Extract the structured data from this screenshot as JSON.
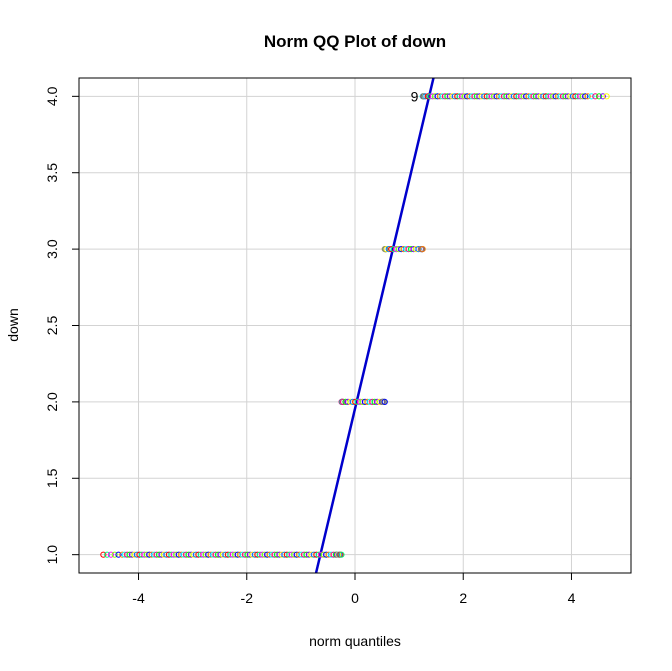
{
  "chart_data": {
    "type": "scatter",
    "title": "Norm QQ Plot of down",
    "xlabel": "norm quantiles",
    "ylabel": "down",
    "xlim": [
      -5.1,
      5.1
    ],
    "ylim": [
      0.88,
      4.12
    ],
    "x_ticks": [
      -4,
      -2,
      0,
      2,
      4
    ],
    "x_tick_labels": [
      "-4",
      "-2",
      "0",
      "2",
      "4"
    ],
    "y_ticks": [
      1.0,
      1.5,
      2.0,
      2.5,
      3.0,
      3.5,
      4.0
    ],
    "y_tick_labels": [
      "1.0",
      "1.5",
      "2.0",
      "2.5",
      "3.0",
      "3.5",
      "4.0"
    ],
    "grid": true,
    "point_color_palette": [
      "#ff0000",
      "#ff8000",
      "#ffff00",
      "#80ff00",
      "#00ff00",
      "#00ff80",
      "#00ffff",
      "#0080ff",
      "#0000ff",
      "#8000ff",
      "#ff00ff",
      "#ff0080"
    ],
    "series": [
      {
        "y": 1.0,
        "x_min": -4.65,
        "x_max": -0.25,
        "cluster_x_min": -4.3,
        "cluster_x_max": -0.35
      },
      {
        "y": 2.0,
        "x_min": -0.25,
        "x_max": 0.55,
        "cluster_x_min": -0.22,
        "cluster_x_max": 0.5
      },
      {
        "y": 3.0,
        "x_min": 0.55,
        "x_max": 1.25,
        "cluster_x_min": 0.58,
        "cluster_x_max": 1.22
      },
      {
        "y": 4.0,
        "x_min": 1.25,
        "x_max": 4.65,
        "cluster_x_min": 1.3,
        "cluster_x_max": 4.3
      }
    ],
    "reference_line": {
      "color": "#0000cc",
      "x": [
        -0.72,
        1.45
      ],
      "y": [
        0.88,
        4.12
      ]
    },
    "annotations": [
      {
        "text": "9",
        "x": 1.1,
        "y": 4.0
      }
    ]
  }
}
